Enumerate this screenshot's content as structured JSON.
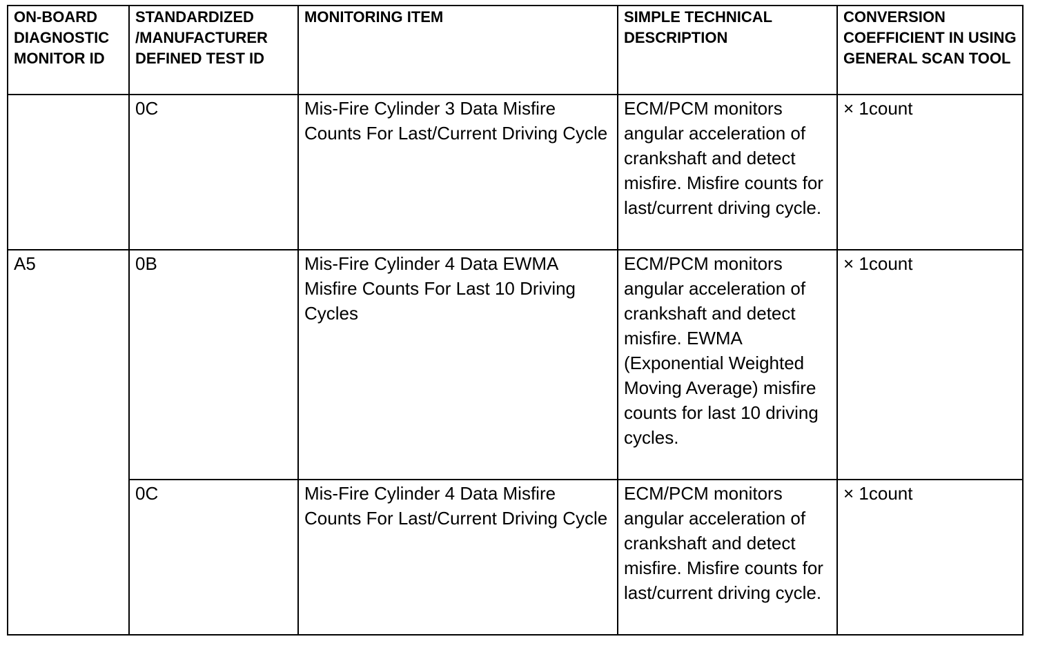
{
  "headers": [
    "ON-BOARD DIAGNOSTIC MONITOR ID",
    "STANDARDIZED /MANUFACTURER DEFINED TEST ID",
    "MONITORING ITEM",
    "SIMPLE TECHNICAL DESCRIPTION",
    "CONVERSION COEFFICIENT IN USING GENERAL SCAN TOOL"
  ],
  "rows": [
    {
      "monitor_id": "",
      "test_id": "0C",
      "item": "Mis-Fire Cylinder 3 Data Misfire Counts For Last/Current Driving Cycle",
      "description": "ECM/PCM monitors angular acceleration of crankshaft and detect misfire. Misfire counts for last/current driving cycle.",
      "coefficient": "× 1count"
    },
    {
      "monitor_id": "A5",
      "test_id": "0B",
      "item": "Mis-Fire Cylinder 4 Data EWMA Misfire Counts For Last 10 Driving Cycles",
      "description": "ECM/PCM monitors angular acceleration of crankshaft and detect misfire. EWMA (Exponential Weighted Moving Average) misfire counts for last 10 driving cycles.",
      "coefficient": "× 1count"
    },
    {
      "test_id": "0C",
      "item": "Mis-Fire Cylinder 4 Data Misfire Counts For Last/Current Driving Cycle",
      "description": "ECM/PCM monitors angular acceleration of crankshaft and detect misfire. Misfire counts for last/current driving cycle.",
      "coefficient": "× 1count"
    }
  ]
}
